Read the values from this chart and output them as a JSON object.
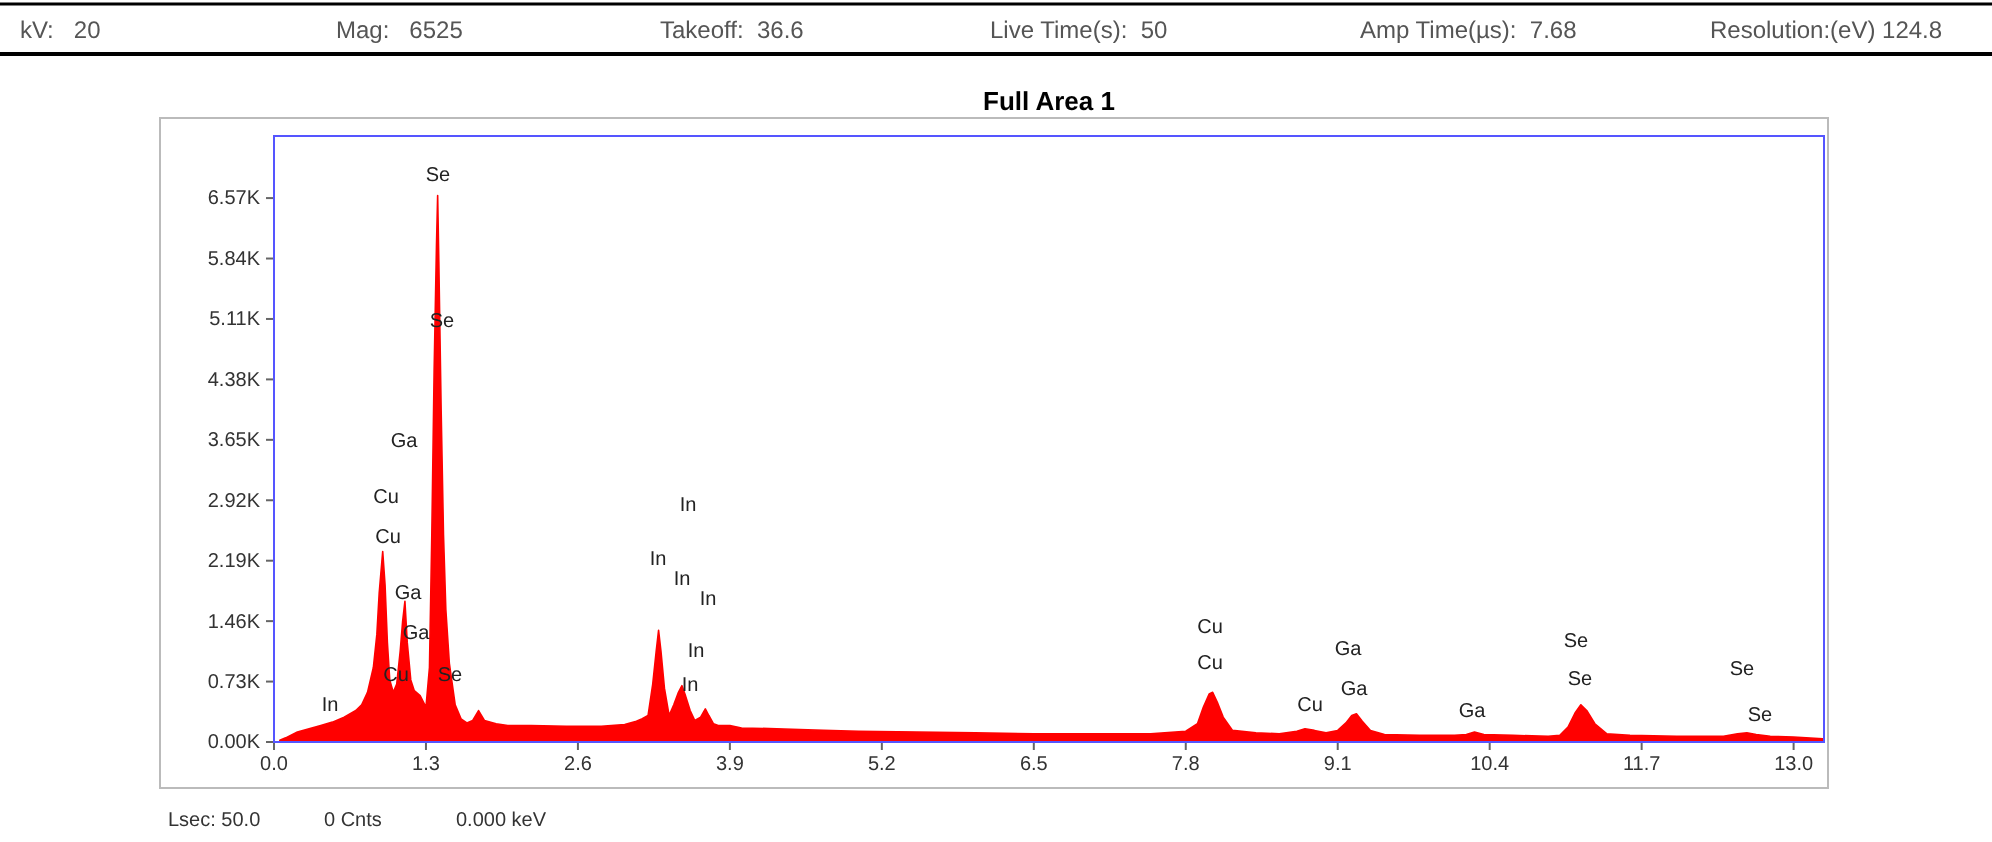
{
  "chart_data": {
    "type": "area",
    "title": "Full Area 1",
    "x": [
      0.05,
      0.1,
      0.2,
      0.3,
      0.4,
      0.5,
      0.6,
      0.7,
      0.75,
      0.8,
      0.85,
      0.88,
      0.9,
      0.93,
      0.95,
      0.97,
      0.99,
      1.02,
      1.05,
      1.08,
      1.1,
      1.12,
      1.14,
      1.17,
      1.2,
      1.25,
      1.3,
      1.33,
      1.35,
      1.37,
      1.39,
      1.4,
      1.41,
      1.43,
      1.45,
      1.47,
      1.5,
      1.55,
      1.6,
      1.65,
      1.7,
      1.75,
      1.8,
      1.9,
      2.0,
      2.2,
      2.5,
      2.8,
      3.0,
      3.1,
      3.15,
      3.2,
      3.24,
      3.27,
      3.29,
      3.31,
      3.34,
      3.38,
      3.42,
      3.46,
      3.49,
      3.52,
      3.56,
      3.6,
      3.65,
      3.69,
      3.72,
      3.76,
      3.8,
      3.9,
      4.0,
      4.3,
      4.7,
      5.0,
      5.5,
      6.0,
      6.5,
      7.0,
      7.5,
      7.8,
      7.9,
      7.95,
      8.0,
      8.03,
      8.07,
      8.12,
      8.2,
      8.4,
      8.6,
      8.75,
      8.82,
      8.9,
      9.0,
      9.1,
      9.17,
      9.22,
      9.26,
      9.31,
      9.38,
      9.5,
      9.8,
      10.1,
      10.2,
      10.27,
      10.35,
      10.6,
      10.9,
      11.0,
      11.07,
      11.13,
      11.18,
      11.23,
      11.3,
      11.4,
      11.6,
      12.0,
      12.4,
      12.52,
      12.6,
      12.68,
      12.8,
      13.0,
      13.25
    ],
    "series": [
      {
        "color": "#ff0000",
        "values": [
          20,
          50,
          120,
          160,
          200,
          240,
          300,
          380,
          450,
          600,
          900,
          1300,
          1800,
          2300,
          1900,
          1200,
          750,
          600,
          700,
          1100,
          1450,
          1700,
          1200,
          750,
          620,
          560,
          420,
          900,
          2500,
          4500,
          6000,
          6600,
          5800,
          4000,
          2500,
          1600,
          950,
          450,
          280,
          230,
          260,
          380,
          260,
          220,
          200,
          200,
          190,
          190,
          210,
          250,
          280,
          320,
          700,
          1100,
          1350,
          1100,
          650,
          320,
          450,
          600,
          680,
          560,
          380,
          260,
          300,
          400,
          320,
          220,
          200,
          200,
          170,
          160,
          140,
          130,
          120,
          110,
          100,
          100,
          100,
          130,
          220,
          420,
          580,
          600,
          480,
          300,
          140,
          110,
          100,
          130,
          160,
          140,
          110,
          140,
          230,
          320,
          340,
          250,
          140,
          90,
          80,
          80,
          90,
          120,
          90,
          80,
          70,
          80,
          180,
          350,
          450,
          380,
          220,
          100,
          80,
          70,
          70,
          100,
          110,
          90,
          70,
          60,
          40
        ]
      }
    ],
    "xlim": [
      0,
      13.26
    ],
    "xticks": [
      {
        "value": 0,
        "label": "0.0"
      },
      1.3,
      2.6,
      3.9,
      5.2,
      6.5,
      7.8,
      9.1,
      10.4,
      11.7,
      {
        "value": 13,
        "label": "13.0"
      }
    ],
    "ylim": [
      0,
      7320
    ],
    "yticks": [
      {
        "value": 0,
        "label": "0.00K"
      },
      {
        "value": 730,
        "label": "0.73K"
      },
      {
        "value": 1460,
        "label": "1.46K"
      },
      {
        "value": 2190,
        "label": "2.19K"
      },
      {
        "value": 2920,
        "label": "2.92K"
      },
      {
        "value": 3650,
        "label": "3.65K"
      },
      {
        "value": 4380,
        "label": "4.38K"
      },
      {
        "value": 5110,
        "label": "5.11K"
      },
      {
        "value": 5840,
        "label": "5.84K"
      },
      {
        "value": 6570,
        "label": "6.57K"
      }
    ],
    "grid": false,
    "annotations": [
      "kV:   20",
      "Mag:   6525",
      "Takeoff:  36.6",
      "Live Time(s):  50",
      "Amp Time(µs):  7.68",
      "Resolution:(eV) 124.8",
      "Lsec: 50.0",
      "0 Cnts",
      "0.000 keV",
      "Se",
      "Se",
      "Ga",
      "Cu",
      "Cu",
      "Ga",
      "Ga",
      "Cu",
      "Se",
      "In",
      "In",
      "In",
      "In",
      "In",
      "In",
      "In",
      "Cu",
      "Cu",
      "Cu",
      "Ga",
      "Ga",
      "Ga",
      "Se",
      "Se",
      "Se",
      "Se"
    ]
  }
}
